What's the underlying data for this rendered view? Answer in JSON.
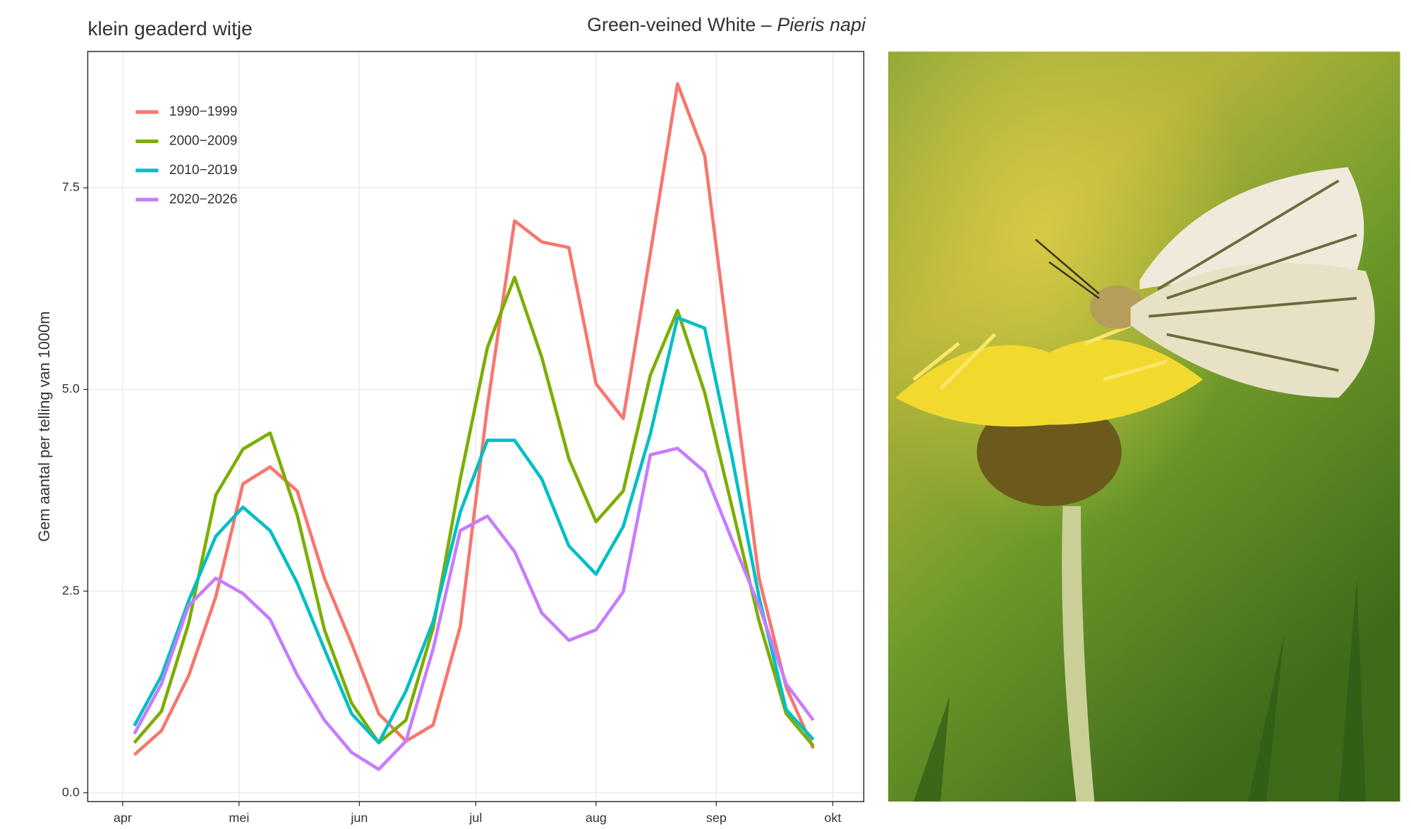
{
  "chart_data": {
    "type": "line",
    "title": "klein geaderd witje",
    "title_common": "Green-veined White –",
    "title_latin": "Pieris napi",
    "y_label": "Gem aantal per telling van 1000m",
    "x": [
      94,
      101,
      108,
      115,
      122,
      129,
      136,
      143,
      150,
      157,
      164,
      171,
      178,
      185,
      192,
      199,
      206,
      213,
      220,
      227,
      234,
      241,
      248,
      255,
      262,
      269
    ],
    "xlim": [
      82,
      282
    ],
    "xticks": [
      {
        "value": 91,
        "label": "apr"
      },
      {
        "value": 121,
        "label": "mei"
      },
      {
        "value": 152,
        "label": "jun"
      },
      {
        "value": 182,
        "label": "jul"
      },
      {
        "value": 213,
        "label": "aug"
      },
      {
        "value": 244,
        "label": "sep"
      },
      {
        "value": 274,
        "label": "okt"
      }
    ],
    "ylim": [
      -0.11,
      9.19
    ],
    "yticks": [
      {
        "value": 0,
        "label": "0.0"
      },
      {
        "value": 2.5,
        "label": "2.5"
      },
      {
        "value": 5,
        "label": "5.0"
      },
      {
        "value": 7.5,
        "label": "7.5"
      }
    ],
    "grid": true,
    "legend": "top-left",
    "series": [
      {
        "name": "1990−1999",
        "color": "#f8766d",
        "values": [
          0.47,
          0.77,
          1.45,
          2.43,
          3.83,
          4.04,
          3.74,
          2.66,
          1.85,
          0.98,
          0.64,
          0.84,
          2.06,
          4.79,
          7.09,
          6.83,
          6.76,
          5.07,
          4.64,
          6.69,
          8.79,
          7.9,
          5.24,
          2.66,
          1.31,
          0.55
        ]
      },
      {
        "name": "2000−2009",
        "color": "#7cae00",
        "values": [
          0.62,
          1.01,
          2.1,
          3.69,
          4.26,
          4.46,
          3.44,
          2.02,
          1.11,
          0.62,
          0.9,
          2.04,
          3.89,
          5.52,
          6.39,
          5.4,
          4.14,
          3.36,
          3.74,
          5.18,
          5.98,
          4.96,
          3.55,
          2.13,
          0.98,
          0.58
        ]
      },
      {
        "name": "2010−2019",
        "color": "#00bfc4",
        "values": [
          0.83,
          1.45,
          2.38,
          3.18,
          3.54,
          3.25,
          2.6,
          1.78,
          0.98,
          0.62,
          1.26,
          2.12,
          3.48,
          4.37,
          4.37,
          3.89,
          3.06,
          2.71,
          3.3,
          4.45,
          5.89,
          5.76,
          4.17,
          2.43,
          1.03,
          0.66
        ]
      },
      {
        "name": "2020−2026",
        "color": "#c77cff",
        "values": [
          0.73,
          1.35,
          2.32,
          2.66,
          2.47,
          2.15,
          1.46,
          0.9,
          0.5,
          0.29,
          0.64,
          1.78,
          3.25,
          3.43,
          2.99,
          2.23,
          1.89,
          2.02,
          2.49,
          4.19,
          4.27,
          3.98,
          3.14,
          2.32,
          1.35,
          0.9
        ]
      }
    ]
  }
}
